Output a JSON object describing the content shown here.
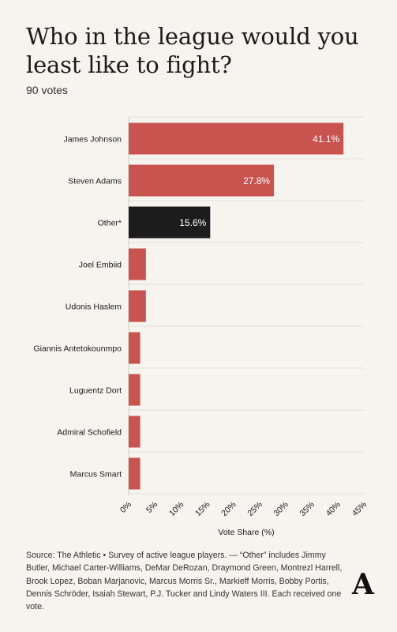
{
  "title": "Who in the league would you least like to fight?",
  "subtitle": "90 votes",
  "chart_data": {
    "type": "bar",
    "orientation": "horizontal",
    "categories": [
      "James Johnson",
      "Steven Adams",
      "Other*",
      "Joel Embiid",
      "Udonis Haslem",
      "Giannis Antetokounmpo",
      "Luguentz Dort",
      "Admiral Schofield",
      "Marcus Smart"
    ],
    "values": [
      41.1,
      27.8,
      15.6,
      3.3,
      3.3,
      2.2,
      2.2,
      2.2,
      2.2
    ],
    "data_labels": [
      "41.1%",
      "27.8%",
      "15.6%",
      "",
      "",
      "",
      "",
      "",
      ""
    ],
    "bar_colors": [
      "#c9534f",
      "#c9534f",
      "#1c1c1c",
      "#c9534f",
      "#c9534f",
      "#c9534f",
      "#c9534f",
      "#c9534f",
      "#c9534f"
    ],
    "xlabel": "Vote Share (%)",
    "xlim": [
      0,
      45
    ],
    "xticks": [
      0,
      5,
      10,
      15,
      20,
      25,
      30,
      35,
      40,
      45
    ],
    "xtick_labels": [
      "0%",
      "5%",
      "10%",
      "15%",
      "20%",
      "25%",
      "30%",
      "35%",
      "40%",
      "45%"
    ],
    "grid": true,
    "legend": "none"
  },
  "footnote": "Source: The Athletic • Survey of active league players. — “Other” includes Jimmy Butler, Michael Carter-Williams, DeMar DeRozan, Draymond Green, Montrezl Harrell, Brook Lopez, Boban Marjanovic, Marcus Morris Sr., Markieff Morris, Bobby Portis, Dennis Schröder, Isaiah Stewart, P.J. Tucker and Lindy Waters III. Each received one vote.",
  "logo": {
    "icon": "the-athletic-logo-icon",
    "text": "A"
  },
  "colors": {
    "accent": "#c9534f",
    "other": "#1c1c1c",
    "background": "#f6f4ef",
    "grid": "#e4e1db"
  }
}
